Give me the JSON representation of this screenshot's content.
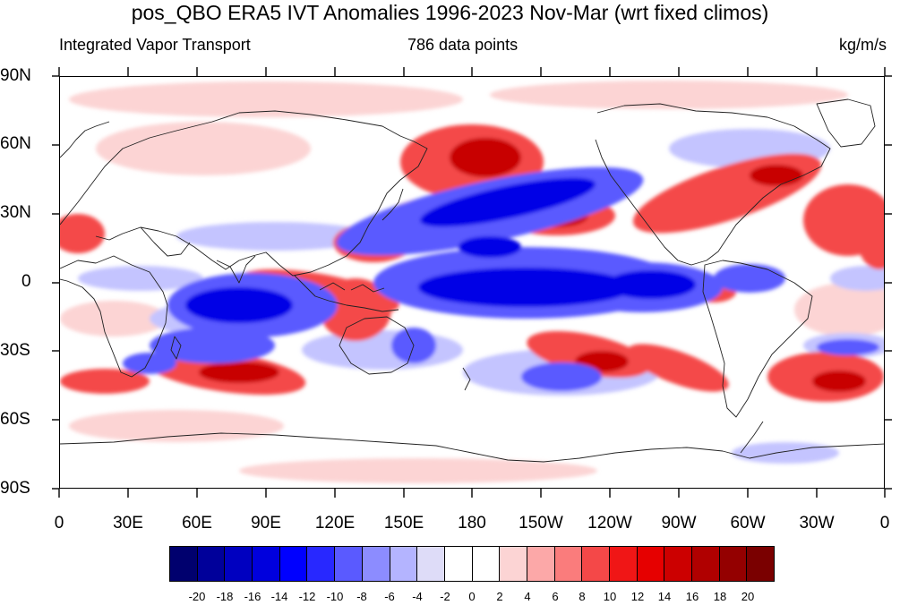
{
  "header": {
    "title": "pos_QBO ERA5 IVT Anomalies 1996-2023 Nov-Mar (wrt fixed climos)",
    "left": "Integrated Vapor Transport",
    "center": "786 data points",
    "right": "kg/m/s"
  },
  "axes": {
    "lat_labels": [
      "90N",
      "60N",
      "30N",
      "0",
      "30S",
      "60S",
      "90S"
    ],
    "lon_labels": [
      "0",
      "30E",
      "60E",
      "90E",
      "120E",
      "150E",
      "180",
      "150W",
      "120W",
      "90W",
      "60W",
      "30W",
      "0"
    ]
  },
  "colorbar": {
    "labels": [
      "-20",
      "-18",
      "-16",
      "-14",
      "-12",
      "-10",
      "-8",
      "-6",
      "-4",
      "-2",
      "0",
      "2",
      "4",
      "6",
      "8",
      "10",
      "12",
      "14",
      "16",
      "18",
      "20"
    ],
    "colors": [
      "#00006e",
      "#00009a",
      "#0000c0",
      "#0000dd",
      "#0000ff",
      "#2828ff",
      "#5a5aff",
      "#8c8cff",
      "#b4b4ff",
      "#dedcf8",
      "#ffffff",
      "#ffffff",
      "#fcd4d4",
      "#fca8a8",
      "#fa7c7c",
      "#f44848",
      "#f01616",
      "#e60000",
      "#cc0000",
      "#b00000",
      "#940000",
      "#7a0000"
    ]
  },
  "colors": {
    "strong_negative": "#0000e6",
    "negative": "#5a5aff",
    "weak_negative": "#c4c4ff",
    "weak_positive": "#fcd4d4",
    "positive": "#f44848",
    "strong_positive": "#c80000",
    "coastline": "#222222"
  }
}
